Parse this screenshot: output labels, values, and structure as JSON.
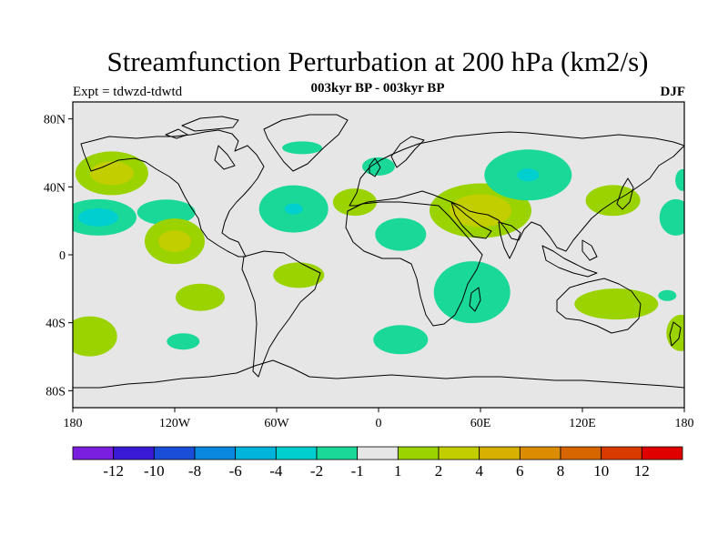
{
  "title": "Streamfunction Perturbation at 200 hPa (km2/s)",
  "subtitle": "003kyr BP - 003kyr BP",
  "left_label": "Expt = tdwzd-tdwtd",
  "right_label": "DJF",
  "map": {
    "projection": "cylindrical equidistant",
    "lon_range": [
      -180,
      180
    ],
    "lat_range": [
      -90,
      90
    ],
    "background_color": "#e6e6e6",
    "lat_ticks": [
      "80N",
      "40N",
      "0",
      "40S",
      "80S"
    ],
    "lon_ticks": [
      "180",
      "120W",
      "60W",
      "0",
      "60E",
      "120E",
      "180"
    ],
    "anomalies": [
      {
        "lon": -157,
        "lat": 48,
        "level": "2"
      },
      {
        "lon": -157,
        "lat": 48,
        "level": "4"
      },
      {
        "lon": -165,
        "lat": 22,
        "level": "-2"
      },
      {
        "lon": -165,
        "lat": 22,
        "level": "-4"
      },
      {
        "lon": -125,
        "lat": 25,
        "level": "-2"
      },
      {
        "lon": -120,
        "lat": 8,
        "level": "2"
      },
      {
        "lon": -120,
        "lat": 8,
        "level": "4"
      },
      {
        "lon": -50,
        "lat": 27,
        "level": "-2"
      },
      {
        "lon": -50,
        "lat": 27,
        "level": "-4"
      },
      {
        "lon": -45,
        "lat": 63,
        "level": "-2"
      },
      {
        "lon": -105,
        "lat": -25,
        "level": "2"
      },
      {
        "lon": -47,
        "lat": -12,
        "level": "2"
      },
      {
        "lon": -170,
        "lat": -48,
        "level": "2"
      },
      {
        "lon": -115,
        "lat": -51,
        "level": "-2"
      },
      {
        "lon": 13,
        "lat": -50,
        "level": "-2"
      },
      {
        "lon": -14,
        "lat": 31,
        "level": "2"
      },
      {
        "lon": 13,
        "lat": 12,
        "level": "-2"
      },
      {
        "lon": 0,
        "lat": 52,
        "level": "-2"
      },
      {
        "lon": 60,
        "lat": 26,
        "level": "2"
      },
      {
        "lon": 60,
        "lat": 26,
        "level": "4"
      },
      {
        "lon": 55,
        "lat": -22,
        "level": "-2"
      },
      {
        "lon": 88,
        "lat": 47,
        "level": "-2"
      },
      {
        "lon": 88,
        "lat": 47,
        "level": "-4"
      },
      {
        "lon": 138,
        "lat": 32,
        "level": "2"
      },
      {
        "lon": 140,
        "lat": -29,
        "level": "2"
      },
      {
        "lon": 175,
        "lat": 22,
        "level": "-2"
      },
      {
        "lon": 178,
        "lat": -46,
        "level": "2"
      },
      {
        "lon": 179,
        "lat": 44,
        "level": "-2"
      },
      {
        "lon": 170,
        "lat": -24,
        "level": "-2"
      }
    ]
  },
  "colorbar": {
    "colors": [
      "#7a1fe0",
      "#3a1ad6",
      "#1a4ed8",
      "#0a88e0",
      "#00b4dc",
      "#00cfd0",
      "#19d898",
      "#e6e6e6",
      "#9bd300",
      "#c3ce00",
      "#d8b100",
      "#dc8c00",
      "#d86600",
      "#d83a00",
      "#e00000"
    ],
    "labels": [
      "-12",
      "-10",
      "-8",
      "-6",
      "-4",
      "-2",
      "-1",
      "1",
      "2",
      "4",
      "6",
      "8",
      "10",
      "12"
    ]
  },
  "level_colors": {
    "-4": "#00cfd0",
    "-2": "#19d898",
    "2": "#9bd300",
    "4": "#c3ce00"
  }
}
